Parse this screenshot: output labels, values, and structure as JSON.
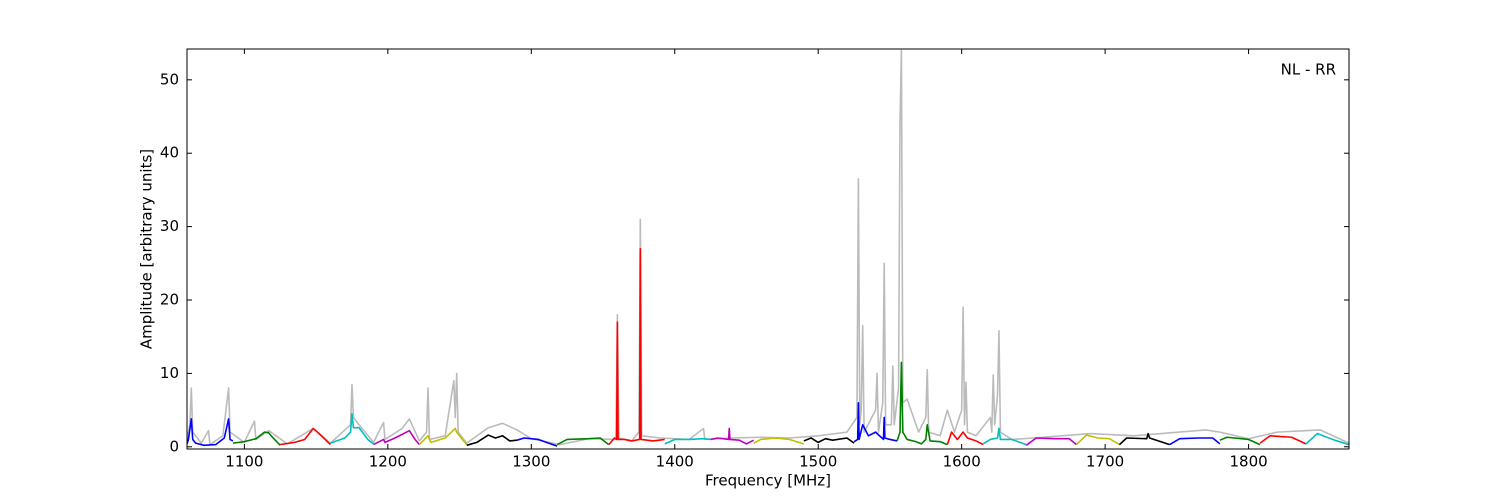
{
  "chart_data": {
    "type": "line",
    "annotation": "NL - RR",
    "x_label": "Frequency [MHz]",
    "y_label": "Amplitude [arbitrary units]",
    "xlim": [
      1060,
      1870
    ],
    "ylim": [
      -0.3,
      54.2
    ],
    "xticks": [
      1100,
      1200,
      1300,
      1400,
      1500,
      1600,
      1700,
      1800
    ],
    "yticks": [
      0,
      10,
      20,
      30,
      40,
      50
    ],
    "series": [
      {
        "color": "#bbbbbb",
        "x": [
          1060,
          1062,
          1063,
          1064,
          1070,
          1075,
          1076,
          1085,
          1089,
          1090,
          1100,
          1107,
          1108,
          1117,
          1130,
          1148,
          1160,
          1174,
          1175,
          1176,
          1180,
          1190,
          1197,
          1198,
          1210,
          1215,
          1222,
          1227,
          1228,
          1229,
          1240,
          1246,
          1247,
          1248,
          1249,
          1255,
          1270,
          1280,
          1290,
          1300,
          1320,
          1340,
          1359,
          1360,
          1361,
          1370,
          1375,
          1376,
          1377,
          1390,
          1410,
          1420,
          1421,
          1440,
          1460,
          1480,
          1500,
          1520,
          1527,
          1528,
          1529,
          1530,
          1531,
          1532,
          1540,
          1541,
          1542,
          1545,
          1546,
          1547,
          1551,
          1552,
          1553,
          1556,
          1557,
          1558,
          1559,
          1562,
          1570,
          1575,
          1576,
          1577,
          1585,
          1590,
          1595,
          1600,
          1601,
          1602,
          1603,
          1604,
          1610,
          1620,
          1621,
          1622,
          1623,
          1625,
          1626,
          1627,
          1635,
          1650,
          1690,
          1720,
          1770,
          1780,
          1800,
          1820,
          1850,
          1870
        ],
        "values": [
          1.0,
          3,
          8,
          2,
          0.5,
          2.2,
          0.3,
          1.5,
          8,
          2,
          0.6,
          3.5,
          1,
          2.2,
          0.4,
          2.5,
          0.5,
          3,
          8.5,
          4,
          3,
          0.6,
          3.3,
          1,
          2.5,
          3.8,
          0.8,
          2,
          8,
          1,
          1.5,
          9,
          4,
          10,
          2,
          0.5,
          2.6,
          3.2,
          2.3,
          1.1,
          0.3,
          1.1,
          1,
          18,
          1.2,
          0.8,
          2,
          31,
          1.5,
          1.2,
          1,
          2.5,
          1,
          1.2,
          1.3,
          1.2,
          1.5,
          2,
          4,
          36.5,
          3,
          5,
          16.5,
          2,
          5,
          10,
          2,
          6,
          25,
          3,
          3,
          11,
          3,
          8,
          44,
          54,
          6,
          6.5,
          2,
          4,
          10.5,
          2,
          1.5,
          5,
          2,
          5,
          19,
          3,
          8.8,
          2,
          1.5,
          4,
          2,
          9.8,
          3,
          7,
          15.8,
          2,
          1,
          1.2,
          1.8,
          1.5,
          2.3,
          2,
          1.1,
          2,
          2.3,
          0.5
        ]
      },
      {
        "color": "#0000ff",
        "x": [
          1060,
          1061,
          1063,
          1064,
          1066,
          1072,
          1080,
          1086,
          1089,
          1090,
          1092
        ],
        "values": [
          0.4,
          1,
          3.8,
          1,
          0.5,
          0.2,
          0.3,
          1.2,
          3.8,
          1,
          0.8
        ]
      },
      {
        "color": "#008000",
        "x": [
          1092,
          1100,
          1108,
          1114,
          1117,
          1120,
          1125
        ],
        "values": [
          0.5,
          0.7,
          1.1,
          2,
          1.9,
          1.2,
          0.2
        ]
      },
      {
        "color": "#ff0000",
        "x": [
          1125,
          1135,
          1142,
          1148,
          1152,
          1160
        ],
        "values": [
          0.3,
          0.6,
          1,
          2.5,
          1.8,
          0.3
        ]
      },
      {
        "color": "#00bfbf",
        "x": [
          1160,
          1170,
          1174,
          1175,
          1176,
          1180,
          1186,
          1190
        ],
        "values": [
          0.5,
          1.2,
          2,
          4.5,
          2.6,
          2.6,
          1,
          0.4
        ]
      },
      {
        "color": "#bf00bf",
        "x": [
          1190,
          1197,
          1198,
          1205,
          1215,
          1219,
          1222
        ],
        "values": [
          0.3,
          1,
          0.6,
          1.2,
          2.2,
          1,
          0.3
        ]
      },
      {
        "color": "#bfbf00",
        "x": [
          1222,
          1228,
          1230,
          1240,
          1247,
          1248,
          1252,
          1255
        ],
        "values": [
          0.3,
          1.5,
          0.6,
          1.2,
          2.5,
          2,
          1,
          0.3
        ]
      },
      {
        "color": "#000000",
        "x": [
          1255,
          1262,
          1270,
          1275,
          1280,
          1285,
          1290
        ],
        "values": [
          0.2,
          0.6,
          1.6,
          1.2,
          1.5,
          0.8,
          0.9
        ]
      },
      {
        "color": "#0000ff",
        "x": [
          1290,
          1295,
          1305,
          1312,
          1318
        ],
        "values": [
          0.9,
          1.2,
          1,
          0.5,
          0.1
        ]
      },
      {
        "color": "#008000",
        "x": [
          1318,
          1325,
          1340,
          1348,
          1354
        ],
        "values": [
          0.3,
          1,
          1.1,
          1.2,
          0.3
        ]
      },
      {
        "color": "#ff0000",
        "x": [
          1354,
          1358,
          1359.5,
          1360,
          1360.5,
          1365,
          1370,
          1375.5,
          1376,
          1376.5,
          1385,
          1393
        ],
        "values": [
          0.3,
          1.2,
          1,
          17,
          1,
          1,
          0.8,
          1,
          27,
          1,
          0.8,
          1
        ]
      },
      {
        "color": "#00bfbf",
        "x": [
          1393,
          1400,
          1410,
          1420,
          1425
        ],
        "values": [
          0.4,
          1,
          1,
          1.1,
          1
        ]
      },
      {
        "color": "#bf00bf",
        "x": [
          1425,
          1430,
          1437.5,
          1438,
          1438.5,
          1445,
          1450,
          1455
        ],
        "values": [
          1,
          1.2,
          1,
          2.5,
          1,
          0.9,
          0.4,
          0.9
        ]
      },
      {
        "color": "#bfbf00",
        "x": [
          1455,
          1460,
          1470,
          1480,
          1490
        ],
        "values": [
          0.5,
          1,
          1.2,
          1,
          0.4
        ]
      },
      {
        "color": "#000000",
        "x": [
          1490,
          1495,
          1500,
          1505,
          1510,
          1520,
          1525
        ],
        "values": [
          0.8,
          1.2,
          0.6,
          1.1,
          0.9,
          1.2,
          0.5
        ]
      },
      {
        "color": "#0000ff",
        "x": [
          1525,
          1527.5,
          1528,
          1528.5,
          1531,
          1535,
          1540,
          1545.5,
          1546,
          1546.5,
          1550,
          1555
        ],
        "values": [
          0.7,
          1,
          6,
          1,
          3,
          1.5,
          2,
          1,
          4,
          1.2,
          1,
          0.8
        ]
      },
      {
        "color": "#008000",
        "x": [
          1555,
          1557,
          1558,
          1559,
          1562,
          1568,
          1572,
          1575,
          1576,
          1578,
          1585,
          1590
        ],
        "values": [
          0.8,
          2,
          11.5,
          2,
          1,
          0.7,
          0.4,
          1,
          3,
          0.8,
          0.7,
          0.3
        ]
      },
      {
        "color": "#ff0000",
        "x": [
          1590,
          1593,
          1597,
          1601,
          1604,
          1610,
          1615
        ],
        "values": [
          0.3,
          2,
          1,
          2,
          1.2,
          0.8,
          0.3
        ]
      },
      {
        "color": "#00bfbf",
        "x": [
          1615,
          1620,
          1625,
          1626,
          1627,
          1635,
          1645
        ],
        "values": [
          0.4,
          1,
          1.2,
          2.5,
          1,
          1,
          0.3
        ]
      },
      {
        "color": "#bf00bf",
        "x": [
          1645,
          1652,
          1665,
          1675,
          1680
        ],
        "values": [
          0.2,
          1.2,
          1.1,
          1.1,
          0.3
        ]
      },
      {
        "color": "#bfbf00",
        "x": [
          1680,
          1687,
          1695,
          1703,
          1710
        ],
        "values": [
          0.3,
          1.6,
          1.2,
          1.1,
          0.3
        ]
      },
      {
        "color": "#000000",
        "x": [
          1710,
          1715,
          1729,
          1730,
          1731,
          1745
        ],
        "values": [
          0.3,
          1.2,
          1.1,
          1.8,
          1.2,
          0.3
        ]
      },
      {
        "color": "#0000ff",
        "x": [
          1745,
          1752,
          1765,
          1775,
          1780
        ],
        "values": [
          0.3,
          1.1,
          1.2,
          1.2,
          0.4
        ]
      },
      {
        "color": "#008000",
        "x": [
          1780,
          1785,
          1800,
          1808
        ],
        "values": [
          0.9,
          1.3,
          1,
          0.3
        ]
      },
      {
        "color": "#ff0000",
        "x": [
          1808,
          1815,
          1830,
          1840
        ],
        "values": [
          0.5,
          1.5,
          1.3,
          0.4
        ]
      },
      {
        "color": "#00bfbf",
        "x": [
          1840,
          1848,
          1860,
          1870
        ],
        "values": [
          0.4,
          1.8,
          0.9,
          0.3
        ]
      }
    ]
  }
}
